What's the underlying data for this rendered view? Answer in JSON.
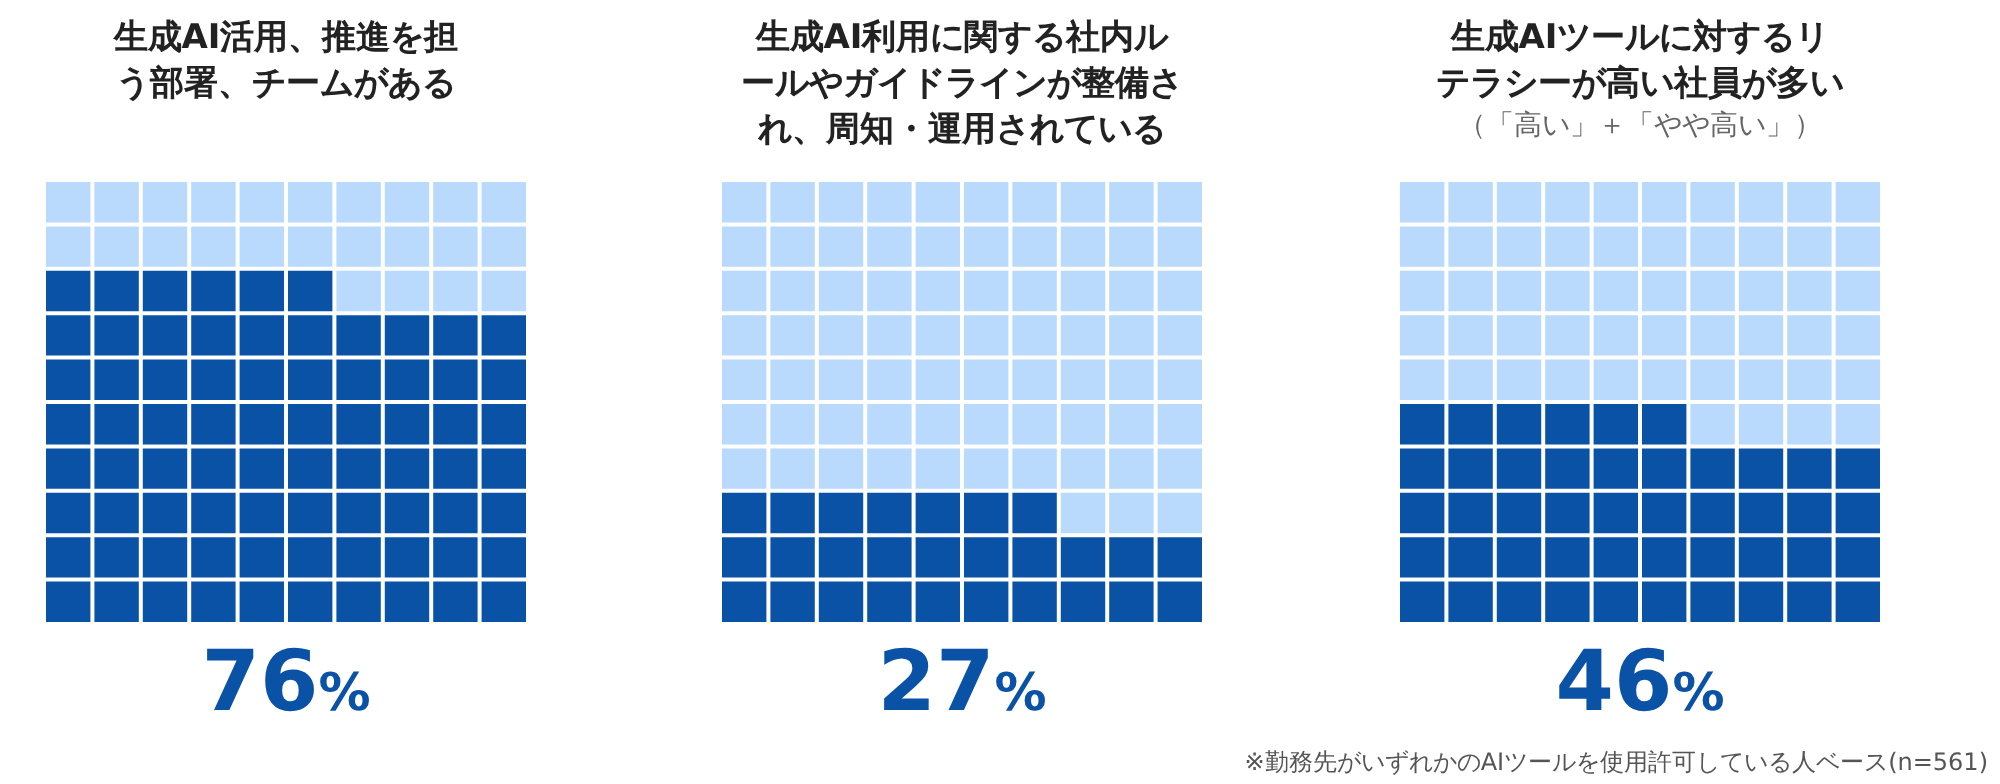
{
  "chart_data": [
    {
      "type": "other",
      "title": "生成AI活用、推進を担う部署、チームがある",
      "values": [
        76
      ],
      "value_labels": [
        "76%"
      ],
      "colors": [
        "#0a52a6"
      ],
      "color": "#b9dafc"
    },
    {
      "type": "other",
      "title": "生成AI利用に関する社内ルールやガイドラインが整備され、周知・運用されている",
      "values": [
        27
      ],
      "value_labels": [
        "27%"
      ],
      "colors": [
        "#0a52a6"
      ],
      "color": "#b9dafc"
    },
    {
      "type": "other",
      "title": "生成AIツールに対するリテラシーが高い社員が多い",
      "subtitle": "（「高い」＋「やや高い」）",
      "values": [
        46
      ],
      "value_labels": [
        "46%"
      ],
      "colors": [
        "#0a52a6"
      ],
      "color": "#b9dafc",
      "annotations": [
        "※勤務先がいずれかのAIツールを使用許可している人ベース(n=561)"
      ]
    }
  ]
}
